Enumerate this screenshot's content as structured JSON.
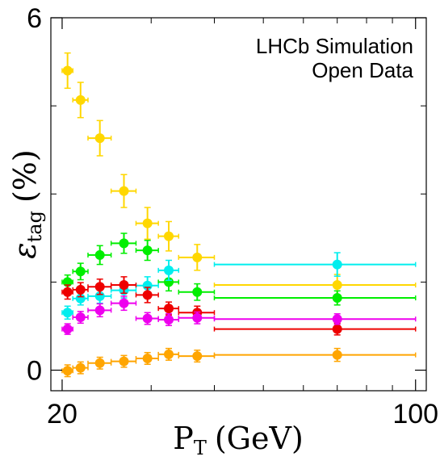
{
  "chart_data": {
    "type": "scatter",
    "title": "",
    "annotation": [
      "LHCb Simulation",
      "Open Data"
    ],
    "xlabel": "P_T (GeV)",
    "xlabel_parts": {
      "main": "P",
      "sub": "T",
      "unit": "(GeV)"
    },
    "ylabel": "ε_tag (%)",
    "ylabel_parts": {
      "main": "ε",
      "sub": "tag",
      "unit": "(%)"
    },
    "x_scale": "log",
    "xlim": [
      19,
      105
    ],
    "ylim": [
      -0.35,
      6
    ],
    "x_tick_labels": [
      {
        "v": 20,
        "t": "20"
      },
      {
        "v": 100,
        "t": "100"
      }
    ],
    "x_minor_ticks": [
      30,
      40,
      50,
      60,
      70,
      80,
      90
    ],
    "y_tick_labels": [
      {
        "v": 0,
        "t": "0"
      },
      {
        "v": 6,
        "t": "6"
      }
    ],
    "y_minor_ticks": [
      1.5,
      3,
      4.5
    ],
    "grid": false,
    "series": [
      {
        "color": "#ffd700",
        "points": [
          {
            "x": 20.5,
            "xlo": 20,
            "xhi": 21,
            "y": 5.1,
            "err": 0.3
          },
          {
            "x": 21.75,
            "xlo": 21,
            "xhi": 22.5,
            "y": 4.6,
            "err": 0.3
          },
          {
            "x": 23.75,
            "xlo": 22.5,
            "xhi": 25,
            "y": 3.95,
            "err": 0.3
          },
          {
            "x": 26.5,
            "xlo": 25,
            "xhi": 28,
            "y": 3.05,
            "err": 0.28
          },
          {
            "x": 29.5,
            "xlo": 28,
            "xhi": 31,
            "y": 2.5,
            "err": 0.27
          },
          {
            "x": 32.5,
            "xlo": 31,
            "xhi": 34,
            "y": 2.28,
            "err": 0.25
          },
          {
            "x": 37,
            "xlo": 34,
            "xhi": 40,
            "y": 1.92,
            "err": 0.22
          },
          {
            "x": 70,
            "xlo": 40,
            "xhi": 100,
            "y": 1.45,
            "err": 0.18
          }
        ]
      },
      {
        "color": "#00ee00",
        "points": [
          {
            "x": 20.5,
            "xlo": 20,
            "xhi": 21,
            "y": 1.5,
            "err": 0.12
          },
          {
            "x": 21.75,
            "xlo": 21,
            "xhi": 22.5,
            "y": 1.68,
            "err": 0.14
          },
          {
            "x": 23.75,
            "xlo": 22.5,
            "xhi": 25,
            "y": 1.96,
            "err": 0.16
          },
          {
            "x": 26.5,
            "xlo": 25,
            "xhi": 28,
            "y": 2.16,
            "err": 0.17
          },
          {
            "x": 29.5,
            "xlo": 28,
            "xhi": 31,
            "y": 2.04,
            "err": 0.17
          },
          {
            "x": 32.5,
            "xlo": 31,
            "xhi": 34,
            "y": 1.5,
            "err": 0.15
          },
          {
            "x": 37,
            "xlo": 34,
            "xhi": 40,
            "y": 1.33,
            "err": 0.14
          },
          {
            "x": 70,
            "xlo": 40,
            "xhi": 100,
            "y": 1.23,
            "err": 0.12
          }
        ]
      },
      {
        "color": "#00eeee",
        "points": [
          {
            "x": 20.5,
            "xlo": 20,
            "xhi": 21,
            "y": 0.98,
            "err": 0.11
          },
          {
            "x": 21.75,
            "xlo": 21,
            "xhi": 22.5,
            "y": 1.22,
            "err": 0.11
          },
          {
            "x": 23.75,
            "xlo": 22.5,
            "xhi": 25,
            "y": 1.26,
            "err": 0.12
          },
          {
            "x": 26.5,
            "xlo": 25,
            "xhi": 28,
            "y": 1.36,
            "err": 0.13
          },
          {
            "x": 29.5,
            "xlo": 28,
            "xhi": 31,
            "y": 1.44,
            "err": 0.15
          },
          {
            "x": 32.5,
            "xlo": 31,
            "xhi": 34,
            "y": 1.7,
            "err": 0.17
          },
          {
            "x": 70,
            "xlo": 40,
            "xhi": 100,
            "y": 1.8,
            "err": 0.2
          }
        ]
      },
      {
        "color": "#ee0000",
        "points": [
          {
            "x": 20.5,
            "xlo": 20,
            "xhi": 21,
            "y": 1.33,
            "err": 0.12
          },
          {
            "x": 21.75,
            "xlo": 21,
            "xhi": 22.5,
            "y": 1.37,
            "err": 0.12
          },
          {
            "x": 23.75,
            "xlo": 22.5,
            "xhi": 25,
            "y": 1.42,
            "err": 0.13
          },
          {
            "x": 26.5,
            "xlo": 25,
            "xhi": 28,
            "y": 1.45,
            "err": 0.14
          },
          {
            "x": 29.5,
            "xlo": 28,
            "xhi": 31,
            "y": 1.28,
            "err": 0.13
          },
          {
            "x": 32.5,
            "xlo": 31,
            "xhi": 34,
            "y": 1.05,
            "err": 0.11
          },
          {
            "x": 37,
            "xlo": 34,
            "xhi": 40,
            "y": 0.98,
            "err": 0.11
          },
          {
            "x": 70,
            "xlo": 40,
            "xhi": 100,
            "y": 0.7,
            "err": 0.1
          }
        ]
      },
      {
        "color": "#ee00ee",
        "points": [
          {
            "x": 20.5,
            "xlo": 20,
            "xhi": 21,
            "y": 0.7,
            "err": 0.09
          },
          {
            "x": 21.75,
            "xlo": 21,
            "xhi": 22.5,
            "y": 0.9,
            "err": 0.1
          },
          {
            "x": 23.75,
            "xlo": 22.5,
            "xhi": 25,
            "y": 1.02,
            "err": 0.11
          },
          {
            "x": 26.5,
            "xlo": 25,
            "xhi": 28,
            "y": 1.14,
            "err": 0.12
          },
          {
            "x": 29.5,
            "xlo": 28,
            "xhi": 31,
            "y": 0.88,
            "err": 0.1
          },
          {
            "x": 32.5,
            "xlo": 31,
            "xhi": 34,
            "y": 0.86,
            "err": 0.1
          },
          {
            "x": 37,
            "xlo": 34,
            "xhi": 40,
            "y": 0.89,
            "err": 0.1
          },
          {
            "x": 70,
            "xlo": 40,
            "xhi": 100,
            "y": 0.87,
            "err": 0.09
          }
        ]
      },
      {
        "color": "#ffa500",
        "points": [
          {
            "x": 20.5,
            "xlo": 20,
            "xhi": 21,
            "y": -0.01,
            "err": 0.1
          },
          {
            "x": 21.75,
            "xlo": 21,
            "xhi": 22.5,
            "y": 0.04,
            "err": 0.1
          },
          {
            "x": 23.75,
            "xlo": 22.5,
            "xhi": 25,
            "y": 0.12,
            "err": 0.1
          },
          {
            "x": 26.5,
            "xlo": 25,
            "xhi": 28,
            "y": 0.15,
            "err": 0.1
          },
          {
            "x": 29.5,
            "xlo": 28,
            "xhi": 31,
            "y": 0.2,
            "err": 0.1
          },
          {
            "x": 32.5,
            "xlo": 31,
            "xhi": 34,
            "y": 0.27,
            "err": 0.1
          },
          {
            "x": 37,
            "xlo": 34,
            "xhi": 40,
            "y": 0.24,
            "err": 0.1
          },
          {
            "x": 70,
            "xlo": 40,
            "xhi": 100,
            "y": 0.26,
            "err": 0.11
          }
        ]
      }
    ]
  }
}
